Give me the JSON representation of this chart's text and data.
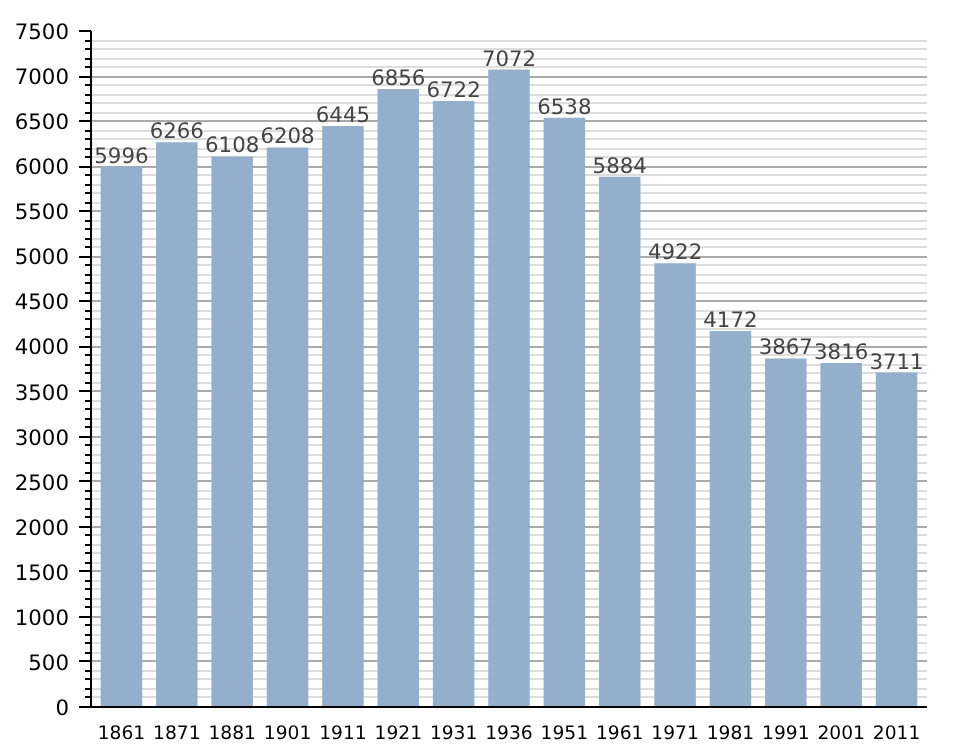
{
  "chart_data": {
    "type": "bar",
    "categories": [
      "1861",
      "1871",
      "1881",
      "1901",
      "1911",
      "1921",
      "1931",
      "1936",
      "1951",
      "1961",
      "1971",
      "1981",
      "1991",
      "2001",
      "2011"
    ],
    "values": [
      5996,
      6266,
      6108,
      6208,
      6445,
      6856,
      6722,
      7072,
      6538,
      5884,
      4922,
      4172,
      3867,
      3816,
      3711
    ],
    "color": "#94afcb",
    "ylim": [
      0,
      7500
    ],
    "yticks": [
      0,
      500,
      1000,
      1500,
      2000,
      2500,
      3000,
      3500,
      4000,
      4500,
      5000,
      5500,
      6000,
      6500,
      7000,
      7500
    ],
    "grid": "y",
    "data_labels": true
  }
}
